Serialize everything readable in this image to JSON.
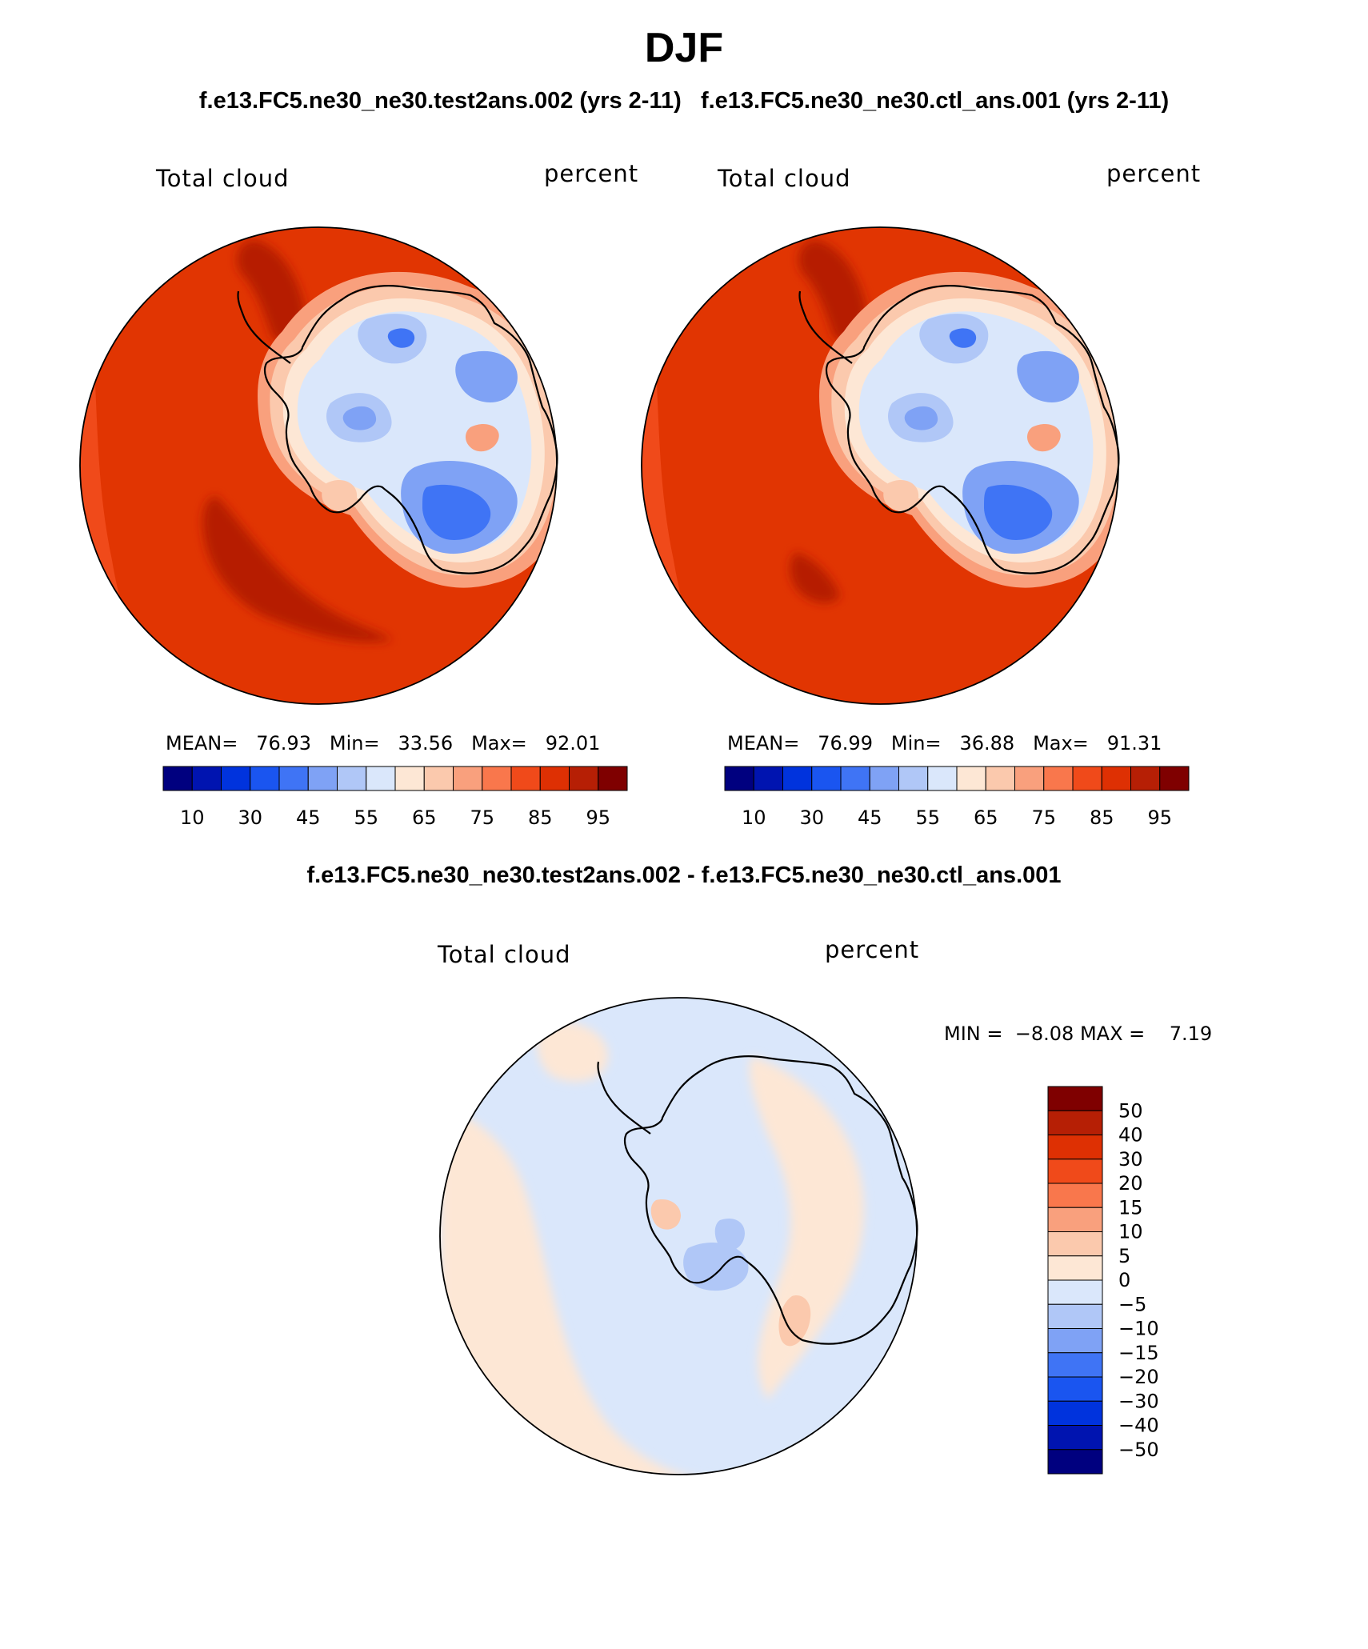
{
  "figure": {
    "title": "DJF",
    "subtitle_left": "f.e13.FC5.ne30_ne30.test2ans.002 (yrs 2-11)",
    "subtitle_right": "f.e13.FC5.ne30_ne30.ctl_ans.001 (yrs 2-11)",
    "diff_title": "f.e13.FC5.ne30_ne30.test2ans.002 - f.e13.FC5.ne30_ne30.ctl_ans.001"
  },
  "panels": [
    {
      "variable": "Total cloud",
      "units": "percent",
      "stats": {
        "mean_label": "MEAN=",
        "mean": "76.93",
        "min_label": "Min=",
        "min": "33.56",
        "max_label": "Max=",
        "max": "92.01"
      }
    },
    {
      "variable": "Total cloud",
      "units": "percent",
      "stats": {
        "mean_label": "MEAN=",
        "mean": "76.99",
        "min_label": "Min=",
        "min": "36.88",
        "max_label": "Max=",
        "max": "91.31"
      }
    },
    {
      "variable": "Total cloud",
      "units": "percent",
      "stats": {
        "min_label": "MIN =",
        "min": "−8.08",
        "max_label": "MAX =",
        "max": "7.19"
      }
    }
  ],
  "abs_colorbar": {
    "colors": [
      "#00007f",
      "#0014b0",
      "#0033dd",
      "#1a55f0",
      "#3f74f5",
      "#7fa2f5",
      "#b0c7f7",
      "#dae7fb",
      "#fde7d5",
      "#fbc9ad",
      "#f9a07d",
      "#f9774c",
      "#f04a1a",
      "#de3003",
      "#b61f05",
      "#7f0000"
    ],
    "labels": [
      "10",
      "30",
      "45",
      "55",
      "65",
      "75",
      "85",
      "95"
    ]
  },
  "diff_colorbar": {
    "colors": [
      "#7f0000",
      "#b61f05",
      "#de3003",
      "#f04a1a",
      "#f9774c",
      "#f9a07d",
      "#fbc9ad",
      "#fde7d5",
      "#dae7fb",
      "#b0c7f7",
      "#7fa2f5",
      "#3f74f5",
      "#1a55f0",
      "#0033dd",
      "#0014b0",
      "#00007f"
    ],
    "labels": [
      "50",
      "40",
      "30",
      "20",
      "15",
      "10",
      "5",
      "0",
      "−5",
      "−10",
      "−15",
      "−20",
      "−30",
      "−40",
      "−50"
    ]
  },
  "map_colors": {
    "ocean_main": "#e13502",
    "ocean_light": "#f04a1a",
    "ocean_dark": "#b61f05",
    "diff_pos": "#fde7d5",
    "diff_neg": "#dae7fb",
    "coast": "#000000"
  }
}
